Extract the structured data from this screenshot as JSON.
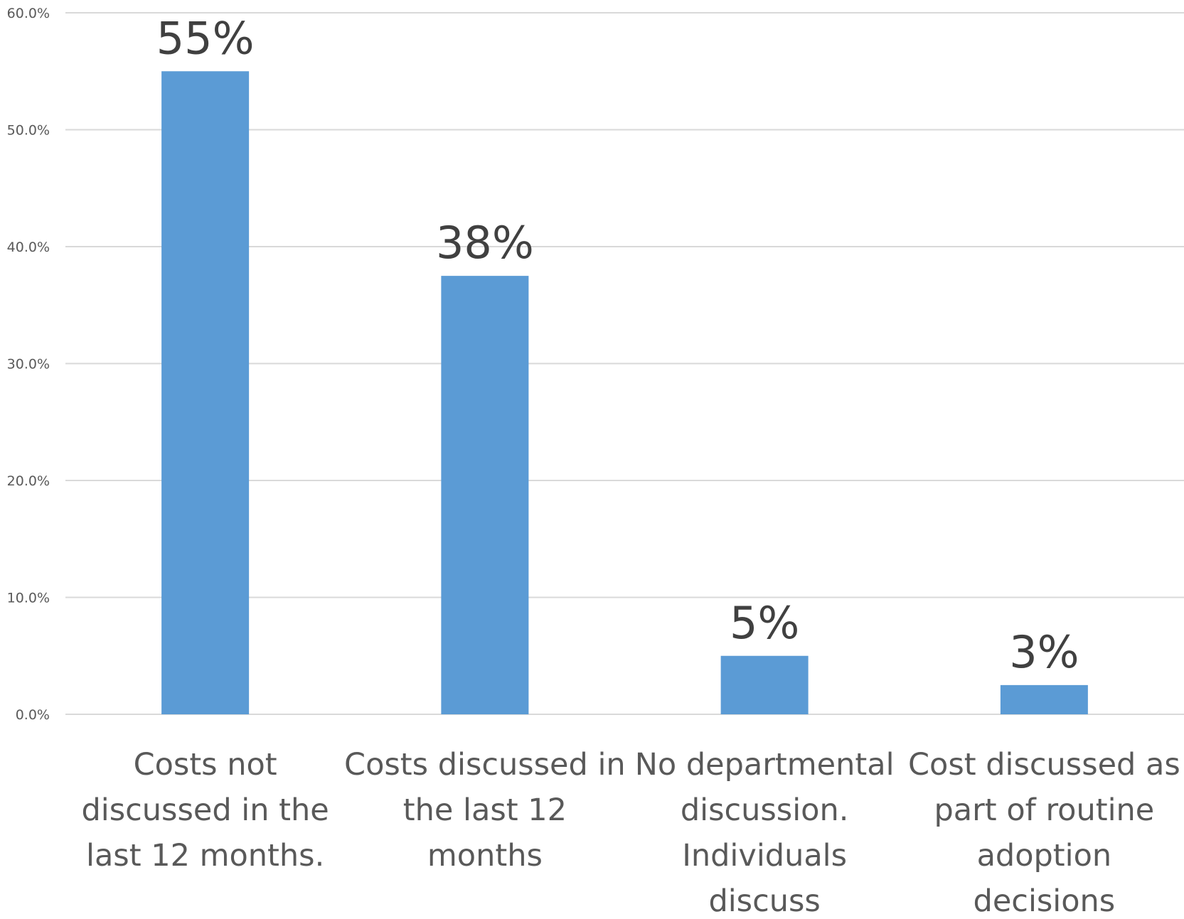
{
  "chart_data": {
    "type": "bar",
    "categories": [
      [
        "Costs not",
        "discussed in the",
        "last 12 months."
      ],
      [
        "Costs discussed in",
        "the last 12",
        "months"
      ],
      [
        "No departmental",
        "discussion.",
        "Individuals",
        "discuss"
      ],
      [
        "Cost discussed as",
        "part of routine",
        "adoption",
        "decisions"
      ]
    ],
    "values": [
      55.0,
      37.5,
      5.0,
      2.5
    ],
    "data_labels": [
      "55%",
      "38%",
      "5%",
      "3%"
    ],
    "yticks": [
      "0.0%",
      "10.0%",
      "20.0%",
      "30.0%",
      "40.0%",
      "50.0%",
      "60.0%"
    ],
    "ylim": [
      0,
      60
    ],
    "grid": true,
    "bar_color": "#5b9bd5"
  }
}
